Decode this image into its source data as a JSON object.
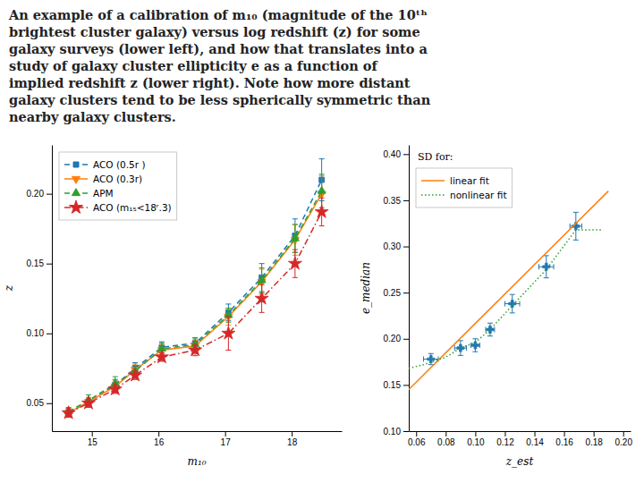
{
  "chart_data": [
    {
      "type": "line",
      "title": "An example of a calibration of m₁₀ (magnitude of the 10ᵗʰ\nbrightest cluster galaxy) versus log redshift (z) for some\ngalaxy surveys (lower left), and how that translates into a\nstudy of galaxy cluster ellipticity e as a function of\nimplied redshift z (lower right). Note how more distant\ngalaxy clusters tend to be less spherically symmetric than\nnearby galaxy clusters.",
      "x_label": "m₁₀",
      "y_label": "z",
      "xlim": [
        14.4,
        18.75
      ],
      "ylim": [
        0.03,
        0.235
      ],
      "xticks": [
        15,
        16,
        17,
        18
      ],
      "yticks": [
        0.05,
        {
          "value": 0.1,
          "label": "0.10"
        },
        0.15,
        {
          "value": 0.2,
          "label": "0.20"
        }
      ],
      "grid": false,
      "legend": "upper left",
      "x": [
        14.65,
        14.95,
        15.35,
        15.65,
        16.05,
        16.55,
        17.05,
        17.55,
        18.05,
        18.45
      ],
      "series": [
        {
          "name": "ACO (0.5r )",
          "marker": "square",
          "line_style": "dashed",
          "values": [
            0.043,
            0.051,
            0.063,
            0.075,
            0.09,
            0.093,
            0.115,
            0.14,
            0.17,
            0.21
          ],
          "yerr": [
            0.003,
            0.003,
            0.004,
            0.004,
            0.004,
            0.004,
            0.006,
            0.01,
            0.012,
            0.015
          ]
        },
        {
          "name": "ACO (0.3r)",
          "marker": "triangle-down",
          "line_style": "solid",
          "values": [
            0.043,
            0.051,
            0.062,
            0.074,
            0.088,
            0.091,
            0.112,
            0.137,
            0.167,
            0.2
          ],
          "yerr": [
            0.003,
            0.003,
            0.004,
            0.004,
            0.004,
            0.004,
            0.006,
            0.009,
            0.011,
            0.013
          ]
        },
        {
          "name": "APM",
          "marker": "triangle-up",
          "line_style": "dashed",
          "values": [
            0.044,
            0.052,
            0.064,
            0.073,
            0.089,
            0.092,
            0.113,
            0.138,
            0.168,
            0.202
          ],
          "yerr": [
            0.003,
            0.004,
            0.005,
            0.004,
            0.004,
            0.004,
            0.005,
            0.009,
            0.01,
            0.012
          ]
        },
        {
          "name": "ACO (m₁₅<18ʳ.3)",
          "marker": "star",
          "line_style": "dashdot",
          "values": [
            0.043,
            0.05,
            0.06,
            0.07,
            0.083,
            0.088,
            0.1,
            0.125,
            0.15,
            0.187
          ],
          "yerr": [
            0.003,
            0.003,
            0.003,
            0.003,
            0.003,
            0.004,
            0.012,
            0.01,
            0.01,
            0.01
          ]
        }
      ]
    },
    {
      "type": "line",
      "x_label": "z_est",
      "y_label": "e_median",
      "annotation": "SD for:",
      "xlim": [
        0.055,
        0.205
      ],
      "ylim": [
        0.1,
        0.41
      ],
      "xticks": [
        0.06,
        0.08,
        {
          "value": 0.1,
          "label": "0.10"
        },
        0.12,
        0.14,
        0.16,
        0.18,
        {
          "value": 0.2,
          "label": "0.20"
        }
      ],
      "yticks": [
        {
          "value": 0.1,
          "label": "0.10"
        },
        0.15,
        {
          "value": 0.2,
          "label": "0.20"
        },
        0.25,
        {
          "value": 0.3,
          "label": "0.30"
        },
        0.35,
        {
          "value": 0.4,
          "label": "0.40"
        }
      ],
      "grid": false,
      "legend": "upper left",
      "series": [
        {
          "type": "scatter",
          "marker": "plus",
          "x": [
            0.07,
            0.09,
            0.1,
            0.11,
            0.125,
            0.148,
            0.168
          ],
          "values": [
            0.178,
            0.19,
            0.193,
            0.21,
            0.238,
            0.278,
            0.322
          ],
          "yerr": [
            0.006,
            0.008,
            0.007,
            0.007,
            0.01,
            0.012,
            0.015
          ],
          "xerr": [
            0.005,
            0.004,
            0.003,
            0.003,
            0.005,
            0.005,
            0.004
          ]
        },
        {
          "type": "line",
          "name": "linear fit",
          "line_style": "solid",
          "x": [
            0.055,
            0.19
          ],
          "values": [
            0.145,
            0.36
          ]
        },
        {
          "type": "line",
          "name": "nonlinear fit",
          "line_style": "dotted",
          "x": [
            0.055,
            0.065,
            0.08,
            0.09,
            0.1,
            0.11,
            0.125,
            0.148,
            0.168,
            0.185
          ],
          "values": [
            0.168,
            0.172,
            0.18,
            0.19,
            0.196,
            0.21,
            0.236,
            0.275,
            0.318,
            0.318
          ]
        }
      ]
    }
  ]
}
